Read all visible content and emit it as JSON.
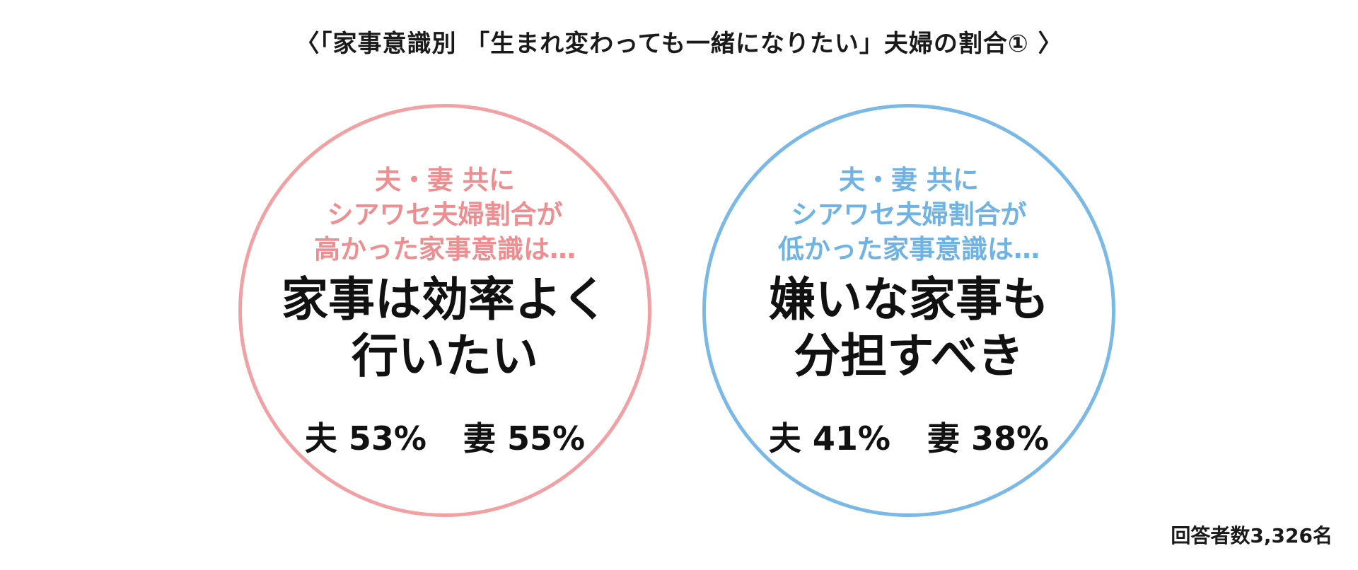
{
  "title": "〈「家事意識別 「生まれ変わっても一緒になりたい」夫婦の割合① 〉",
  "circles": {
    "left": {
      "intro": [
        "夫・妻 共に",
        "シアワセ夫婦割合が",
        "高かった家事意識は…"
      ],
      "headline": [
        "家事は効率よく",
        "行いたい"
      ],
      "husband": "夫 53%",
      "wife": "妻 55%",
      "border_color": "#f1a1a4",
      "intro_color": "#ee8e91"
    },
    "right": {
      "intro": [
        "夫・妻 共に",
        "シアワセ夫婦割合が",
        "低かった家事意識は…"
      ],
      "headline": [
        "嫌いな家事も",
        "分担すべき"
      ],
      "husband": "夫 41%",
      "wife": "妻 38%",
      "border_color": "#7ab9e6",
      "intro_color": "#6fb2e4"
    }
  },
  "footnote": "回答者数3,326名"
}
